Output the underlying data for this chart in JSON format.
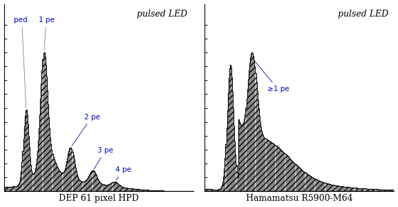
{
  "fig_width": 5.76,
  "fig_height": 3.0,
  "dpi": 100,
  "background_color": "#ffffff",
  "left_title": "DEP 61 pixel HPD",
  "right_title": "Hamamatsu R5900-M64",
  "left_label": "pulsed LED",
  "right_label": "pulsed LED",
  "blue_color": "#0000bb",
  "hatch_pattern": "////"
}
